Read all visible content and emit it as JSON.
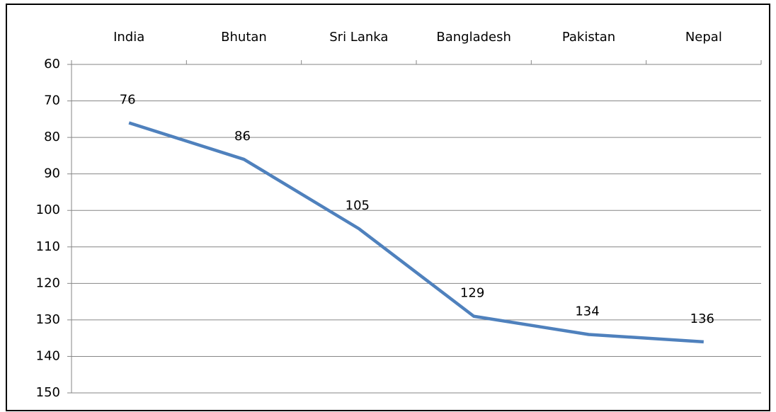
{
  "chart_data": {
    "type": "line",
    "categories": [
      "India",
      "Bhutan",
      "Sri Lanka",
      "Bangladesh",
      "Pakistan",
      "Nepal"
    ],
    "series": [
      {
        "color": "#4f81bd",
        "values": [
          76,
          86,
          105,
          129,
          134,
          136
        ]
      }
    ],
    "ylim": [
      60,
      150
    ],
    "y_reversed": true,
    "yticks": [
      60,
      70,
      80,
      90,
      100,
      110,
      120,
      130,
      140,
      150
    ],
    "grid": true,
    "data_labels": true
  }
}
